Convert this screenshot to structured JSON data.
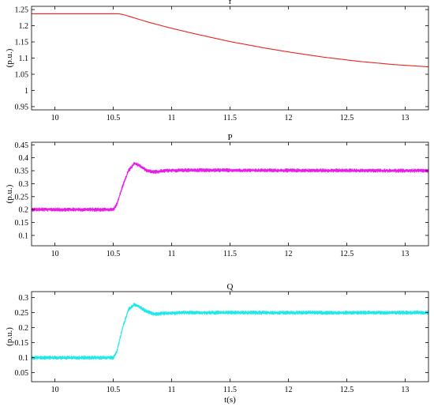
{
  "chart_data": [
    {
      "type": "line",
      "title": "f",
      "ylabel": "(p.u.)",
      "xlabel": "",
      "xlim": [
        9.8,
        13.2
      ],
      "ylim": [
        0.94,
        1.26
      ],
      "x_ticks": [
        10,
        10.5,
        11,
        11.5,
        12,
        12.5,
        13
      ],
      "y_ticks": [
        0.95,
        1,
        1.05,
        1.1,
        1.15,
        1.2,
        1.25
      ],
      "x_tick_labels": [
        "10",
        "10.5",
        "11",
        "11.5",
        "12",
        "12.5",
        "13"
      ],
      "y_tick_labels": [
        "0.95",
        "1",
        "1.05",
        "1.1",
        "1.15",
        "1.2",
        "1.25"
      ],
      "grid": false,
      "series": [
        {
          "color": "#e8241c",
          "x": [
            9.8,
            10.55,
            10.6,
            10.7,
            10.8,
            11.0,
            11.2,
            11.5,
            11.8,
            12.0,
            12.3,
            12.6,
            12.9,
            13.2
          ],
          "y": [
            1.237,
            1.237,
            1.233,
            1.222,
            1.211,
            1.192,
            1.175,
            1.151,
            1.131,
            1.119,
            1.103,
            1.09,
            1.08,
            1.073
          ]
        }
      ]
    },
    {
      "type": "line",
      "title": "P",
      "ylabel": "(p.u.)",
      "xlabel": "",
      "xlim": [
        9.8,
        13.2
      ],
      "ylim": [
        0.06,
        0.46
      ],
      "x_ticks": [
        10,
        10.5,
        11,
        11.5,
        12,
        12.5,
        13
      ],
      "y_ticks": [
        0.1,
        0.15,
        0.2,
        0.25,
        0.3,
        0.35,
        0.4,
        0.45
      ],
      "x_tick_labels": [
        "10",
        "10.5",
        "11",
        "11.5",
        "12",
        "12.5",
        "13"
      ],
      "y_tick_labels": [
        "0.1",
        "0.15",
        "0.2",
        "0.25",
        "0.3",
        "0.35",
        "0.4",
        "0.45"
      ],
      "grid": false,
      "series": [
        {
          "color": "#e81ee8",
          "noise": 0.008,
          "x": [
            9.8,
            10.5,
            10.53,
            10.58,
            10.63,
            10.68,
            10.72,
            10.78,
            10.85,
            10.95,
            11.1,
            13.2
          ],
          "y": [
            0.2,
            0.2,
            0.22,
            0.29,
            0.35,
            0.378,
            0.372,
            0.352,
            0.345,
            0.35,
            0.352,
            0.35
          ]
        }
      ]
    },
    {
      "type": "line",
      "title": "Q",
      "ylabel": "(p.u.)",
      "xlabel": "t(s)",
      "xlim": [
        9.8,
        13.2
      ],
      "ylim": [
        0.02,
        0.32
      ],
      "x_ticks": [
        10,
        10.5,
        11,
        11.5,
        12,
        12.5,
        13
      ],
      "y_ticks": [
        0.05,
        0.1,
        0.15,
        0.2,
        0.25,
        0.3
      ],
      "x_tick_labels": [
        "10",
        "10.5",
        "11",
        "11.5",
        "12",
        "12.5",
        "13"
      ],
      "y_tick_labels": [
        "0.05",
        "0.1",
        "0.15",
        "0.2",
        "0.25",
        "0.3"
      ],
      "grid": false,
      "series": [
        {
          "color": "#20e8e8",
          "noise": 0.007,
          "x": [
            9.8,
            10.5,
            10.53,
            10.58,
            10.63,
            10.68,
            10.72,
            10.78,
            10.85,
            10.95,
            11.1,
            13.2
          ],
          "y": [
            0.1,
            0.1,
            0.12,
            0.2,
            0.26,
            0.277,
            0.27,
            0.255,
            0.245,
            0.248,
            0.25,
            0.25
          ]
        }
      ]
    }
  ]
}
